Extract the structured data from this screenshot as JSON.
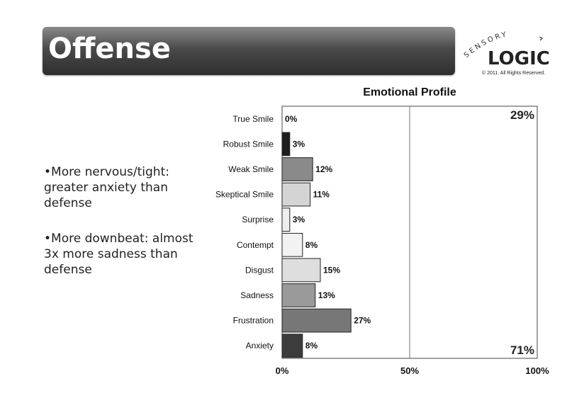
{
  "slide": {
    "title": "Offense",
    "logo": {
      "top_word": "SENSORY",
      "main_word": "LOGIC",
      "copyright": "© 2011.  All Rights Reserved."
    },
    "bullets": [
      "•More nervous/tight: greater anxiety than defense",
      "•More downbeat: almost 3x more sadness than defense"
    ]
  },
  "chart_data": {
    "type": "bar",
    "orientation": "horizontal",
    "title": "Emotional Profile",
    "categories": [
      "True Smile",
      "Robust Smile",
      "Weak Smile",
      "Skeptical Smile",
      "Surprise",
      "Contempt",
      "Disgust",
      "Sadness",
      "Frustration",
      "Anxiety"
    ],
    "values": [
      0,
      3,
      12,
      11,
      3,
      8,
      15,
      13,
      27,
      8
    ],
    "data_labels": [
      "0%",
      "3%",
      "12%",
      "11%",
      "3%",
      "8%",
      "15%",
      "13%",
      "27%",
      "8%"
    ],
    "bar_colors": [
      "#ffffff",
      "#1e1e1e",
      "#8a8a8a",
      "#d4d4d4",
      "#eeeeee",
      "#f2f2f2",
      "#dedede",
      "#9a9a9a",
      "#777777",
      "#3c3c3c"
    ],
    "xlim": [
      0,
      100
    ],
    "x_ticks": [
      "0%",
      "50%",
      "100%"
    ],
    "annotations": [
      {
        "text": "29%",
        "position": "top-right"
      },
      {
        "text": "71%",
        "position": "bottom-right"
      }
    ],
    "grid": false,
    "reference_line_at": 50
  }
}
